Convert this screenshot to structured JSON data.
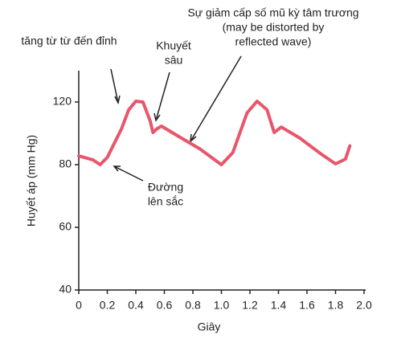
{
  "chart_data": {
    "type": "line",
    "x_label": "Giây",
    "y_label": "Huyết áp (mm Hg)",
    "xlim": [
      0,
      2.0
    ],
    "ylim": [
      40,
      140
    ],
    "xticks": [
      0,
      0.2,
      0.4,
      0.6,
      0.8,
      {
        "value": 1,
        "label": "1.0"
      },
      1.2,
      1.4,
      1.6,
      1.8,
      {
        "value": 2,
        "label": "2.0"
      }
    ],
    "yticks": [
      40,
      60,
      80,
      120
    ],
    "x": [
      0,
      0.1,
      0.15,
      0.2,
      0.3,
      0.35,
      0.4,
      0.45,
      0.5,
      0.52,
      0.55,
      0.58,
      0.7,
      0.85,
      1.0,
      1.08,
      1.18,
      1.25,
      1.32,
      1.37,
      1.42,
      1.55,
      1.7,
      1.8,
      1.87,
      1.9
    ],
    "series": [
      {
        "color": "#e8566a",
        "values": [
          85.6,
          83,
          80,
          84.6,
          103,
          115,
          120.5,
          120,
          108,
          100.5,
          103,
          104.6,
          98,
          90,
          80,
          87.7,
          113,
          120.5,
          115,
          100.5,
          104,
          97,
          86.7,
          80.5,
          83.6,
          92
        ]
      }
    ],
    "annotations": [
      {
        "lines": [
          "tăng từ từ đến đỉnh"
        ]
      },
      {
        "lines": [
          "Khuyết",
          "sâu"
        ]
      },
      {
        "lines": [
          "Sự giảm cấp số mũ kỳ tâm trương",
          "(may be distorted by",
          "reflected wave)"
        ]
      },
      {
        "lines": [
          "Đường",
          "lên sắc"
        ]
      }
    ]
  }
}
